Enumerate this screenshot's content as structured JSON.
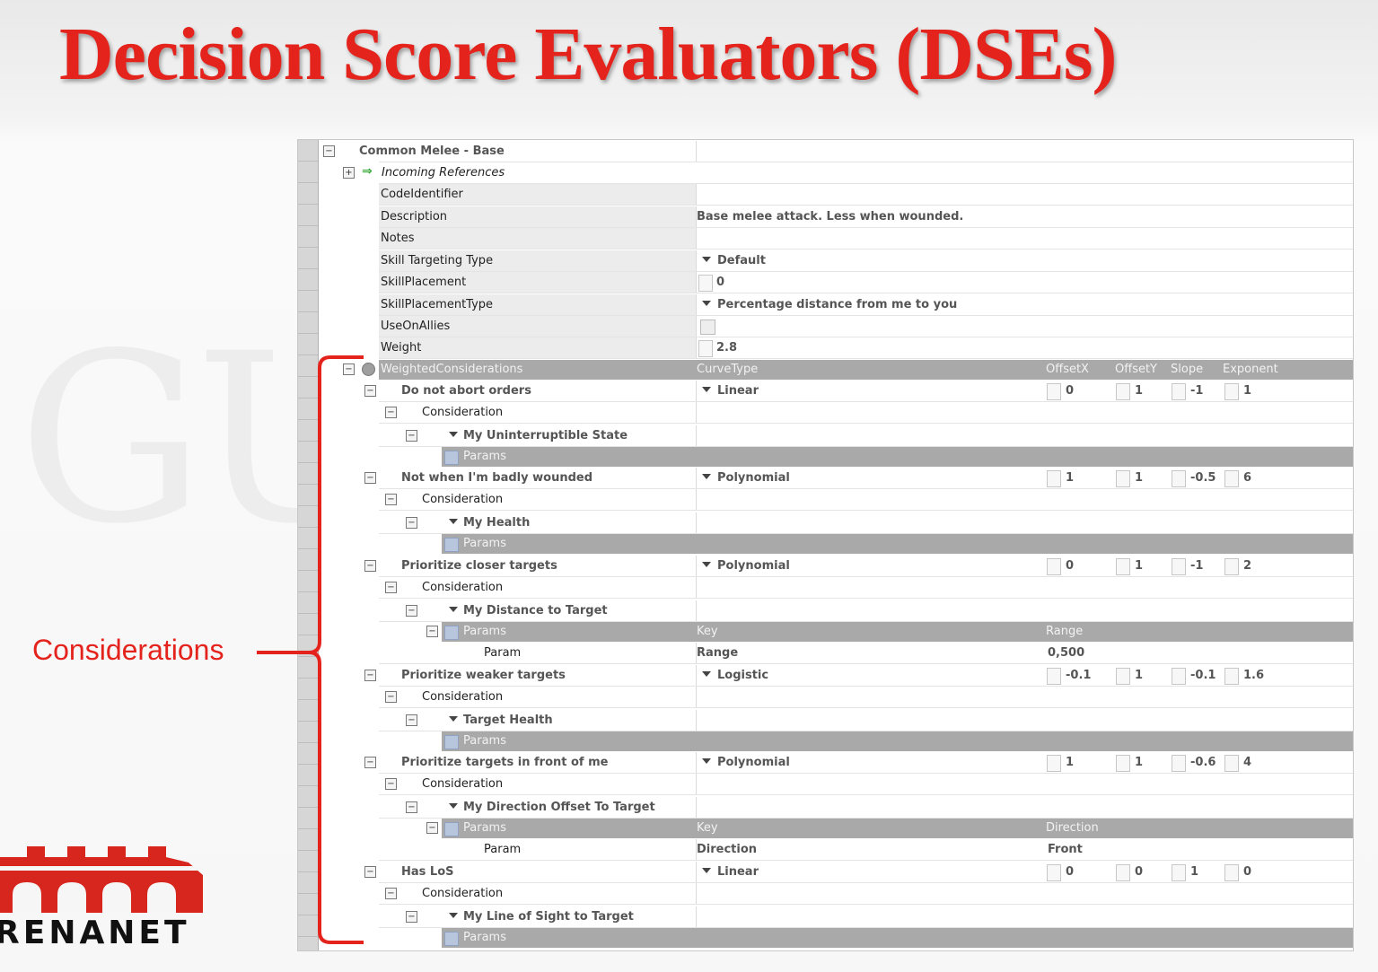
{
  "slide": {
    "title": "Decision Score Evaluators (DSEs)",
    "callout_label": "Considerations",
    "logo_text": "RENANET",
    "watermark": "GU",
    "accent_color": "#e4231d"
  },
  "grid": {
    "root_label": "Common Melee - Base",
    "incoming_references": "Incoming References",
    "properties": [
      {
        "name": "CodeIdentifier",
        "value": ""
      },
      {
        "name": "Description",
        "value": "Base melee attack. Less when wounded."
      },
      {
        "name": "Notes",
        "value": ""
      },
      {
        "name": "Skill Targeting Type",
        "value": "Default"
      },
      {
        "name": "SkillPlacement",
        "value": "0"
      },
      {
        "name": "SkillPlacementType",
        "value": "Percentage distance from me to you"
      },
      {
        "name": "UseOnAllies",
        "value": ""
      },
      {
        "name": "Weight",
        "value": "2.8"
      }
    ],
    "weighted_header": {
      "label": "WeightedConsiderations",
      "curve_type": "CurveType",
      "offset_x": "OffsetX",
      "offset_y": "OffsetY",
      "slope": "Slope",
      "exponent": "Exponent"
    },
    "consideration_label": "Consideration",
    "params_label": "Params",
    "key_label": "Key",
    "param_label": "Param",
    "considerations": [
      {
        "name": "Do not abort orders",
        "curve": "Linear",
        "ox": "0",
        "oy": "1",
        "slope": "-1",
        "exp": "1",
        "input": "My Uninterruptible State"
      },
      {
        "name": "Not when I'm badly wounded",
        "curve": "Polynomial",
        "ox": "1",
        "oy": "1",
        "slope": "-0.5",
        "exp": "6",
        "input": "My Health"
      },
      {
        "name": "Prioritize closer targets",
        "curve": "Polynomial",
        "ox": "0",
        "oy": "1",
        "slope": "-1",
        "exp": "2",
        "input": "My Distance to Target",
        "param_header_right": "Range",
        "param_key": "Range",
        "param_value": "0,500"
      },
      {
        "name": "Prioritize weaker targets",
        "curve": "Logistic",
        "ox": "-0.1",
        "oy": "1",
        "slope": "-0.1",
        "exp": "1.6",
        "input": "Target Health"
      },
      {
        "name": "Prioritize targets in front of me",
        "curve": "Polynomial",
        "ox": "1",
        "oy": "1",
        "slope": "-0.6",
        "exp": "4",
        "input": "My Direction Offset To Target",
        "param_header_right": "Direction",
        "param_key": "Direction",
        "param_value": "Front"
      },
      {
        "name": "Has LoS",
        "curve": "Linear",
        "ox": "0",
        "oy": "0",
        "slope": "1",
        "exp": "0",
        "input": "My Line of Sight to Target"
      }
    ]
  }
}
